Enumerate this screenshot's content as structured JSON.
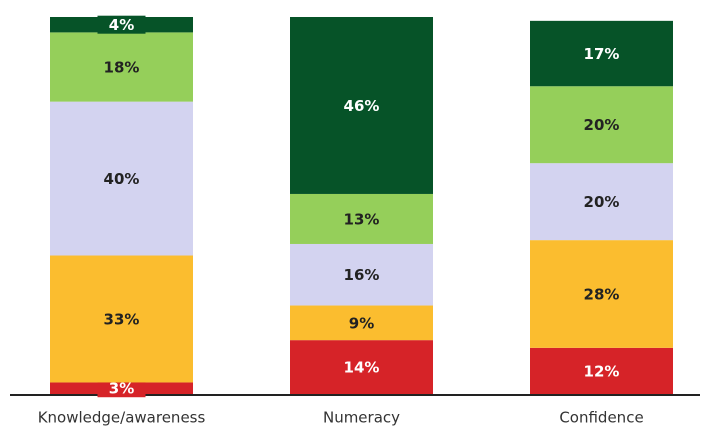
{
  "chart_data": {
    "type": "bar",
    "stacked": true,
    "categories": [
      "Knowledge/awareness",
      "Numeracy",
      "Confidence"
    ],
    "series": [
      {
        "color": "#d62328",
        "values": [
          3,
          14,
          12
        ],
        "value_labels": [
          "3%",
          "14%",
          "12%"
        ]
      },
      {
        "color": "#fbbd2f",
        "values": [
          33,
          9,
          28
        ],
        "value_labels": [
          "33%",
          "9%",
          "28%"
        ]
      },
      {
        "color": "#d3d3f0",
        "values": [
          40,
          16,
          20
        ],
        "value_labels": [
          "40%",
          "16%",
          "20%"
        ]
      },
      {
        "color": "#95cf5a",
        "values": [
          18,
          13,
          20
        ],
        "value_labels": [
          "18%",
          "13%",
          "20%"
        ]
      },
      {
        "color": "#065328",
        "values": [
          4,
          46,
          17
        ],
        "value_labels": [
          "4%",
          "46%",
          "17%"
        ]
      }
    ],
    "ylim": [
      0,
      98
    ]
  }
}
